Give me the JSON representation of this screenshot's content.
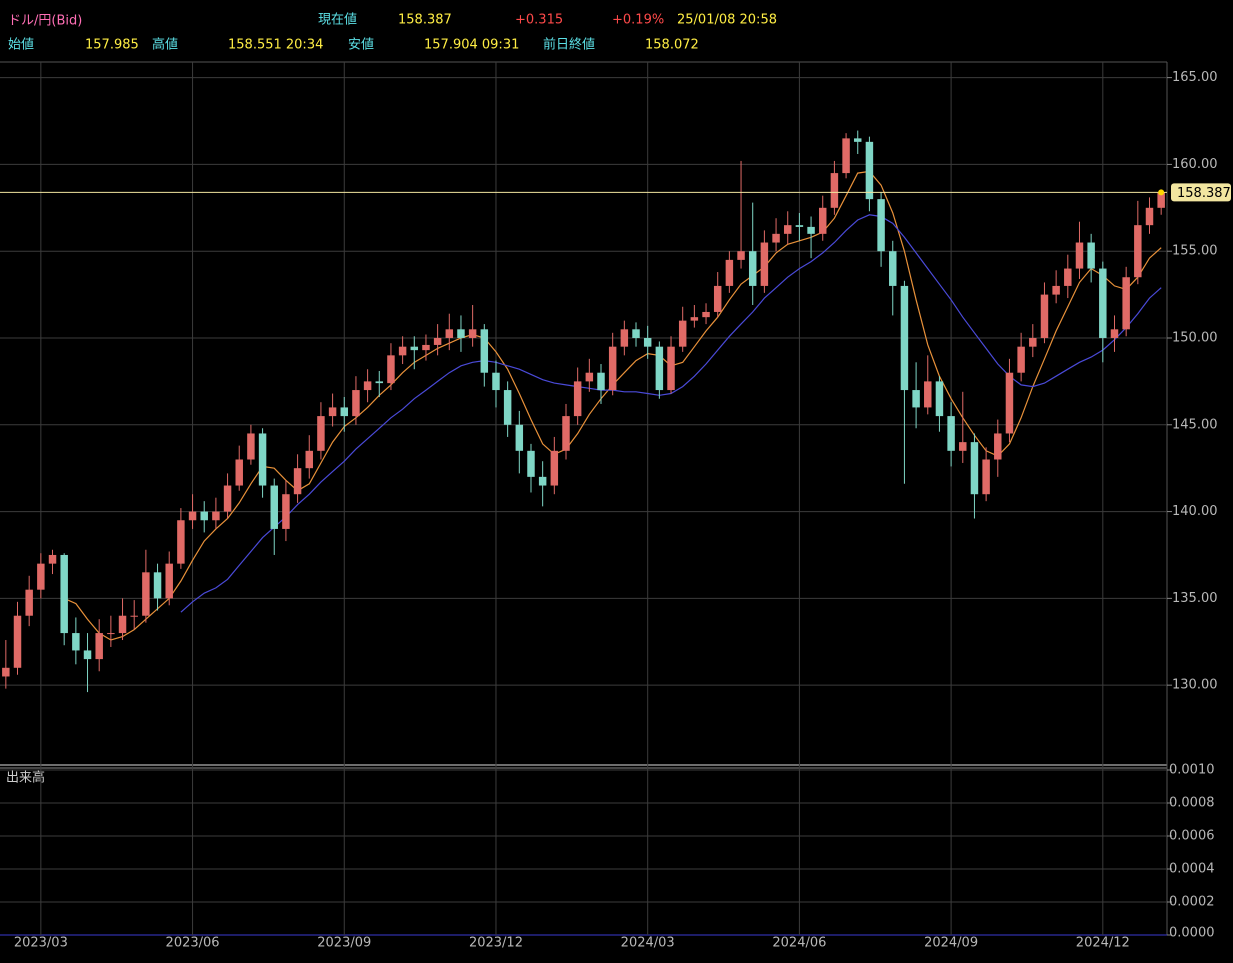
{
  "header": {
    "symbol": "ドル/円(Bid)",
    "current_label": "現在値",
    "current": "158.387",
    "change": "+0.315",
    "change_pct": "+0.19%",
    "time": "25/01/08 20:58",
    "open_label": "始値",
    "open": "157.985",
    "high_label": "高値",
    "high": "158.551 20:34",
    "low_label": "安値",
    "low": "157.904 09:31",
    "prev_close_label": "前日終値",
    "prev_close": "158.072"
  },
  "chart_data": {
    "type": "candlestick",
    "categories": [
      null,
      null,
      null,
      "2023/03",
      null,
      null,
      null,
      null,
      null,
      null,
      null,
      null,
      null,
      null,
      null,
      null,
      "2023/06",
      null,
      null,
      null,
      null,
      null,
      null,
      null,
      null,
      null,
      null,
      null,
      null,
      "2023/09",
      null,
      null,
      null,
      null,
      null,
      null,
      null,
      null,
      null,
      null,
      null,
      null,
      "2023/12",
      null,
      null,
      null,
      null,
      null,
      null,
      null,
      null,
      null,
      null,
      null,
      null,
      "2024/03",
      null,
      null,
      null,
      null,
      null,
      null,
      null,
      null,
      null,
      null,
      null,
      null,
      "2024/06",
      null,
      null,
      null,
      null,
      null,
      null,
      null,
      null,
      null,
      null,
      null,
      null,
      "2024/09",
      null,
      null,
      null,
      null,
      null,
      null,
      null,
      null,
      null,
      null,
      null,
      null,
      "2024/12",
      null,
      null,
      null,
      null,
      null
    ],
    "open": [
      130.5,
      131,
      134,
      135.5,
      137,
      137.5,
      133,
      132,
      131.5,
      133,
      133,
      134,
      134,
      136.5,
      135,
      137,
      139.5,
      140,
      139.5,
      140,
      141.5,
      143,
      144.5,
      141.5,
      139,
      141,
      142.5,
      143.5,
      145.5,
      146,
      145.5,
      147,
      147.5,
      147.4,
      149,
      149.5,
      149.3,
      149.6,
      150,
      150.5,
      150,
      150.5,
      148,
      147,
      145,
      143.5,
      142,
      141.5,
      143.5,
      145.5,
      147.5,
      148,
      147,
      149.5,
      150.5,
      150,
      149.5,
      147,
      149.5,
      151,
      151.2,
      151.5,
      153,
      154.5,
      155,
      153,
      155.5,
      156,
      156.5,
      156.4,
      156,
      157.5,
      159.5,
      161.5,
      161.3,
      158,
      155,
      153,
      147,
      146,
      147.5,
      145.5,
      143.5,
      144,
      141,
      143,
      144.5,
      148,
      149.5,
      150,
      152.5,
      153,
      154,
      155.5,
      154,
      150,
      150.5,
      153.5,
      156.5,
      157.5
    ],
    "high": [
      132.6,
      134.8,
      136.3,
      137.6,
      137.8,
      137.6,
      133.9,
      133,
      133.8,
      134,
      135,
      134.9,
      137.8,
      137,
      137.7,
      140.2,
      141,
      140.6,
      140.8,
      142.2,
      143.8,
      145,
      144.8,
      141.9,
      141.8,
      143.3,
      144.4,
      146.3,
      146.8,
      146.6,
      147.8,
      148.2,
      148.1,
      149.7,
      150.1,
      150.1,
      150.2,
      150.8,
      151.4,
      151.3,
      151.9,
      150.8,
      148.7,
      147.5,
      145.8,
      143.9,
      142.9,
      144.3,
      146.2,
      148.3,
      148.8,
      148.5,
      150.3,
      151,
      150.9,
      150.7,
      149.8,
      150.1,
      151.8,
      151.9,
      152,
      153.8,
      155,
      160.2,
      157.8,
      156.2,
      156.9,
      157.3,
      157.2,
      157,
      158.2,
      160.2,
      161.8,
      161.95,
      161.6,
      158.4,
      155.6,
      153.3,
      148.6,
      149,
      147.8,
      146.3,
      146.9,
      144.5,
      143.7,
      145.3,
      148.8,
      150.3,
      150.8,
      153.2,
      153.9,
      154.8,
      156.7,
      156,
      154.4,
      151.3,
      154.1,
      157.9,
      158.1,
      158.551
    ],
    "low": [
      129.8,
      130.6,
      133.4,
      135,
      136.4,
      132.3,
      131.2,
      129.6,
      130.8,
      132.2,
      132.6,
      133.2,
      133.6,
      134.3,
      134.6,
      136.7,
      139,
      138.8,
      139,
      139.6,
      141.2,
      142.7,
      140.8,
      137.5,
      138.3,
      140.5,
      141.9,
      143,
      144.9,
      144.6,
      145,
      146.3,
      146.6,
      147,
      148.5,
      148.2,
      148.7,
      149,
      149.3,
      149.2,
      149.5,
      147.2,
      146,
      144.3,
      142.2,
      141.1,
      140.3,
      141,
      143,
      145,
      146.9,
      146.2,
      146.7,
      149,
      149.5,
      148.8,
      146.5,
      146.8,
      149.2,
      150.6,
      150.8,
      151.2,
      152.6,
      154,
      151.9,
      152.6,
      155,
      155.4,
      155.6,
      154.6,
      155.6,
      157.1,
      159.2,
      160.6,
      157.3,
      154.1,
      151.3,
      141.6,
      144.8,
      145.6,
      144.6,
      142.6,
      142.8,
      139.6,
      140.6,
      142,
      144,
      147.5,
      148.9,
      149.7,
      152,
      152.3,
      153.4,
      153.2,
      148.6,
      149.2,
      150.1,
      153.1,
      156,
      157.1
    ],
    "close": [
      131,
      134,
      135.5,
      137,
      137.5,
      133,
      132,
      131.5,
      133,
      133,
      134,
      134,
      136.5,
      135,
      137,
      139.5,
      140,
      139.5,
      140,
      141.5,
      143,
      144.5,
      141.5,
      139,
      141,
      142.5,
      143.5,
      145.5,
      146,
      145.5,
      147,
      147.5,
      147.4,
      149,
      149.5,
      149.3,
      149.6,
      150,
      150.5,
      150,
      150.5,
      148,
      147,
      145,
      143.5,
      142,
      141.5,
      143.5,
      145.5,
      147.5,
      148,
      147,
      149.5,
      150.5,
      150,
      149.5,
      147,
      149.5,
      151,
      151.2,
      151.5,
      153,
      154.5,
      155,
      153,
      155.5,
      156,
      156.5,
      156.4,
      156,
      157.5,
      159.5,
      161.5,
      161.3,
      158,
      155,
      153,
      147,
      146,
      147.5,
      145.5,
      143.5,
      144,
      141,
      143,
      144.5,
      148,
      149.5,
      150,
      152.5,
      153,
      154,
      155.5,
      154,
      150,
      150.5,
      153.5,
      156.5,
      157.5,
      158.387
    ],
    "up_color": "#e06a66",
    "down_color": "#7fd6c6",
    "series": [
      {
        "color": "#e8913a",
        "values": [
          null,
          null,
          null,
          null,
          null,
          135,
          134.7,
          133.8,
          133,
          132.6,
          132.8,
          133.2,
          133.8,
          134.4,
          135,
          136,
          137.2,
          138.3,
          139,
          139.6,
          140.5,
          141.6,
          142.6,
          142.5,
          141.8,
          141.2,
          141.6,
          142.8,
          144,
          144.9,
          145.4,
          146,
          146.7,
          147.3,
          148,
          148.6,
          149,
          149.4,
          149.7,
          150,
          150.2,
          150,
          149.2,
          148.2,
          146.8,
          145.3,
          143.9,
          143.3,
          143.6,
          144.5,
          145.6,
          146.5,
          147.3,
          148,
          148.7,
          149.1,
          149,
          148.4,
          148.6,
          149.5,
          150.4,
          151.2,
          152.2,
          153.1,
          153.6,
          154.1,
          154.9,
          155.4,
          155.6,
          155.8,
          156.1,
          156.9,
          158.2,
          159.5,
          159.6,
          158.8,
          157.2,
          155,
          152.2,
          149.6,
          147.8,
          146.5,
          145.4,
          144.4,
          143.5,
          143.2,
          143.9,
          145.4,
          147.2,
          148.8,
          150.4,
          151.8,
          153.2,
          154,
          153.6,
          153,
          152.8,
          153.5,
          154.6,
          155.2
        ]
      },
      {
        "color": "#4a4ad8",
        "values": [
          null,
          null,
          null,
          null,
          null,
          null,
          null,
          null,
          null,
          null,
          null,
          null,
          null,
          null,
          null,
          134.2,
          134.8,
          135.3,
          135.6,
          136.1,
          136.9,
          137.7,
          138.5,
          139.1,
          139.7,
          140.4,
          141,
          141.7,
          142.3,
          142.9,
          143.6,
          144.2,
          144.8,
          145.4,
          145.9,
          146.5,
          147,
          147.5,
          148,
          148.4,
          148.6,
          148.7,
          148.6,
          148.4,
          148.2,
          147.9,
          147.6,
          147.4,
          147.3,
          147.2,
          147.1,
          147,
          147,
          146.9,
          146.9,
          146.8,
          146.7,
          146.8,
          147.2,
          147.8,
          148.5,
          149.3,
          150.1,
          150.8,
          151.5,
          152.3,
          152.9,
          153.5,
          154,
          154.4,
          154.9,
          155.5,
          156.2,
          156.8,
          157.1,
          157,
          156.6,
          155.8,
          154.9,
          154,
          153.1,
          152.2,
          151.2,
          150.3,
          149.4,
          148.5,
          147.8,
          147.3,
          147.2,
          147.4,
          147.8,
          148.2,
          148.6,
          148.9,
          149.3,
          149.9,
          150.6,
          151.4,
          152.3,
          152.9
        ]
      }
    ],
    "ylim": [
      125.4,
      165.9
    ],
    "yticks": [
      {
        "value": 130,
        "label": "130.00"
      },
      {
        "value": 135,
        "label": "135.00"
      },
      {
        "value": 140,
        "label": "140.00"
      },
      {
        "value": 145,
        "label": "145.00"
      },
      {
        "value": 150,
        "label": "150.00"
      },
      {
        "value": 155,
        "label": "155.00"
      },
      {
        "value": 160,
        "label": "160.00"
      },
      {
        "value": 165,
        "label": "165.00"
      }
    ],
    "grid": true,
    "last_price_line": true,
    "last_price_color": "#f2e6a0",
    "volume_panel": {
      "title": "出来高",
      "ylim": [
        0,
        0.001
      ],
      "yticks": [
        {
          "value": 0.001,
          "label": "0.0010"
        },
        0.0008,
        0.0006,
        0.0004,
        0.0002,
        {
          "value": 0,
          "label": "0.0000"
        }
      ]
    }
  }
}
